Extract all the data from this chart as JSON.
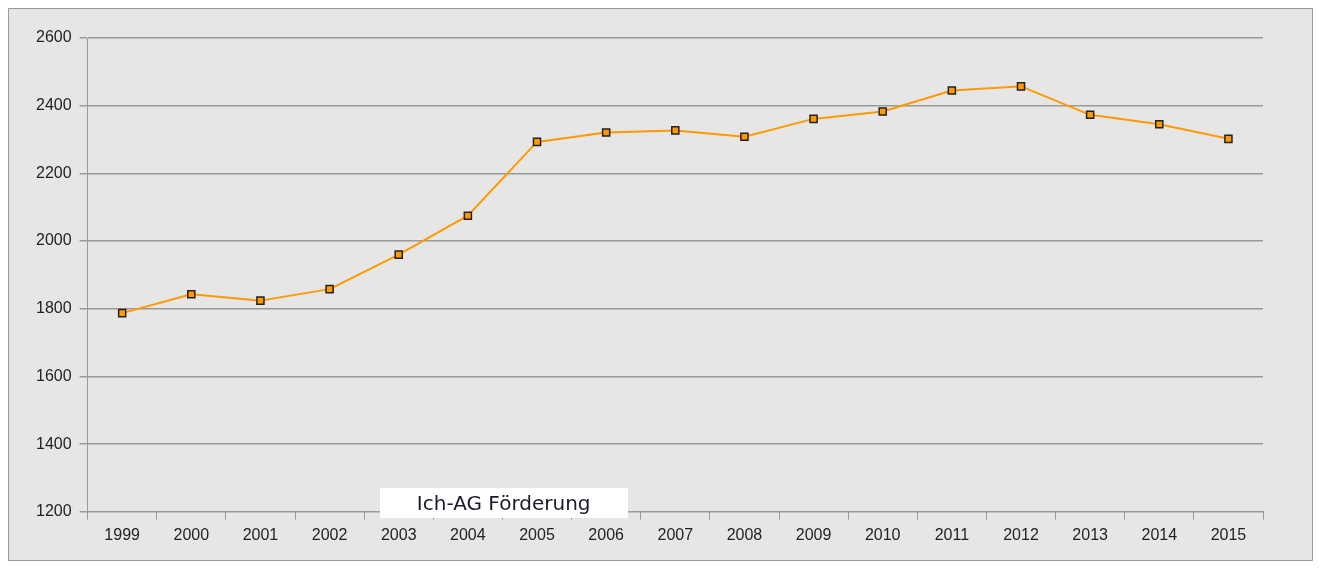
{
  "chart_data": {
    "type": "line",
    "categories": [
      "1999",
      "2000",
      "2001",
      "2002",
      "2003",
      "2004",
      "2005",
      "2006",
      "2007",
      "2008",
      "2009",
      "2010",
      "2011",
      "2012",
      "2013",
      "2014",
      "2015"
    ],
    "series": [
      {
        "color": "#ff9900",
        "values": [
          1787,
          1843,
          1824,
          1858,
          1960,
          2075,
          2293,
          2321,
          2327,
          2308,
          2361,
          2383,
          2445,
          2457,
          2373,
          2345,
          2302
        ]
      }
    ],
    "ylim": [
      1200,
      2600
    ],
    "yticks": [
      1200,
      1400,
      1600,
      1800,
      2000,
      2200,
      2400,
      2600
    ],
    "grid": "y",
    "marker": "square",
    "line_style": "solid",
    "legend": false,
    "annotations": [
      "Ich-AG Förderung"
    ]
  }
}
